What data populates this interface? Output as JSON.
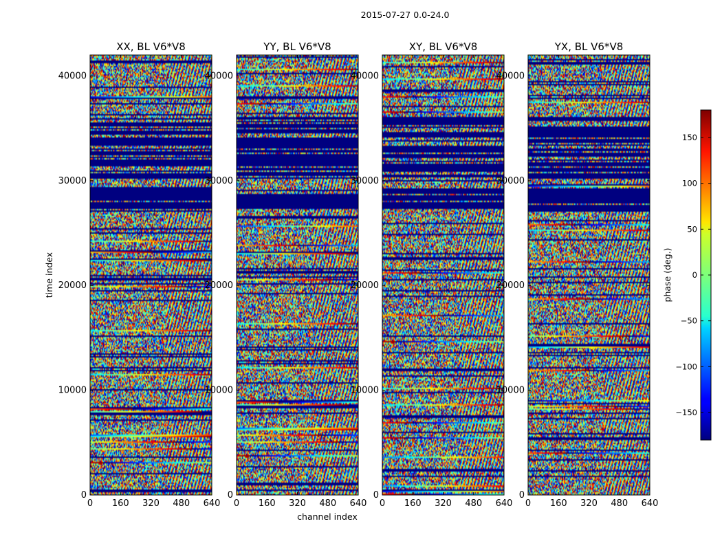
{
  "figure_title": "2015-07-27 0.0-24.0",
  "chart_data": {
    "type": "heatmap",
    "title": "2015-07-27 0.0-24.0",
    "xlabel": "channel index",
    "ylabel": "time index",
    "colorbar_label": "phase (deg.)",
    "colormap": "jet",
    "clim": [
      -180,
      180
    ],
    "xlim": [
      0,
      640
    ],
    "ylim": [
      0,
      42000
    ],
    "x_ticks": [
      "0",
      "160",
      "320",
      "480",
      "640"
    ],
    "y_ticks": [
      "0",
      "10000",
      "20000",
      "30000",
      "40000"
    ],
    "colorbar_ticks": [
      "150",
      "100",
      "50",
      "0",
      "−50",
      "−100",
      "−150"
    ],
    "colorbar_tick_values": [
      150,
      100,
      50,
      0,
      -50,
      -100,
      -150
    ],
    "panels": [
      {
        "title": "XX, BL V6*V8"
      },
      {
        "title": "YY, BL V6*V8"
      },
      {
        "title": "XY, BL V6*V8"
      },
      {
        "title": "YX, BL V6*V8"
      }
    ],
    "grid": false
  }
}
